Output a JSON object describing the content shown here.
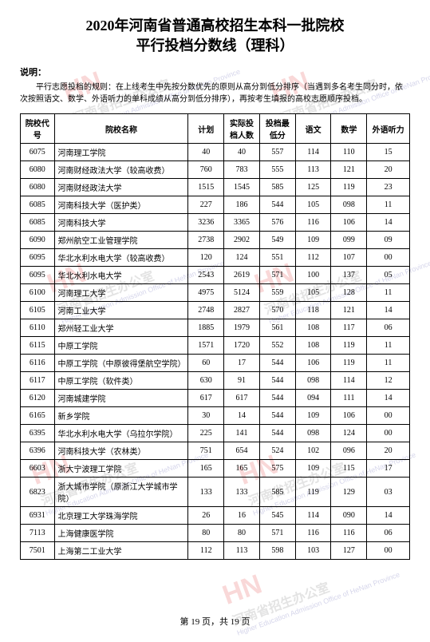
{
  "title_line1": "2020年河南省普通高校招生本科一批院校",
  "title_line2": "平行投档分数线（理科）",
  "note_label": "说明：",
  "note_body": "平行志愿投档的规则：在上线考生中先按分数优先的原则从高分到低分排序（当遇到多名考生同分时，依次按照语文、数学、外语听力的单科成绩从高分到低分排序），再按考生填报的高校志愿顺序投档。",
  "columns": {
    "code": "院校代号",
    "name": "院校名称",
    "plan": "计划",
    "actual": "实际投档人数",
    "score": "投档最低分",
    "chinese": "语文",
    "math": "数学",
    "listen": "外语听力"
  },
  "rows": [
    {
      "code": "6075",
      "name": "河南理工学院",
      "plan": "40",
      "actual": "40",
      "score": "557",
      "chinese": "114",
      "math": "110",
      "listen": "15"
    },
    {
      "code": "6080",
      "name": "河南财经政法大学（较高收费）",
      "plan": "760",
      "actual": "783",
      "score": "555",
      "chinese": "113",
      "math": "121",
      "listen": "20"
    },
    {
      "code": "6080",
      "name": "河南财经政法大学",
      "plan": "1515",
      "actual": "1545",
      "score": "585",
      "chinese": "125",
      "math": "119",
      "listen": "23"
    },
    {
      "code": "6085",
      "name": "河南科技大学（医护类）",
      "plan": "227",
      "actual": "186",
      "score": "544",
      "chinese": "105",
      "math": "098",
      "listen": "11"
    },
    {
      "code": "6085",
      "name": "河南科技大学",
      "plan": "3236",
      "actual": "3365",
      "score": "576",
      "chinese": "116",
      "math": "106",
      "listen": "14"
    },
    {
      "code": "6090",
      "name": "郑州航空工业管理学院",
      "plan": "2738",
      "actual": "2902",
      "score": "549",
      "chinese": "109",
      "math": "099",
      "listen": "09"
    },
    {
      "code": "6095",
      "name": "华北水利水电大学（较高收费）",
      "plan": "120",
      "actual": "124",
      "score": "551",
      "chinese": "112",
      "math": "107",
      "listen": "00"
    },
    {
      "code": "6095",
      "name": "华北水利水电大学",
      "plan": "2543",
      "actual": "2619",
      "score": "571",
      "chinese": "100",
      "math": "137",
      "listen": "05"
    },
    {
      "code": "6100",
      "name": "河南理工大学",
      "plan": "4975",
      "actual": "5124",
      "score": "559",
      "chinese": "105",
      "math": "128",
      "listen": "11"
    },
    {
      "code": "6105",
      "name": "河南工业大学",
      "plan": "2748",
      "actual": "2827",
      "score": "570",
      "chinese": "118",
      "math": "121",
      "listen": "14"
    },
    {
      "code": "6110",
      "name": "郑州轻工业大学",
      "plan": "1885",
      "actual": "1979",
      "score": "561",
      "chinese": "108",
      "math": "117",
      "listen": "06"
    },
    {
      "code": "6115",
      "name": "中原工学院",
      "plan": "1571",
      "actual": "1720",
      "score": "552",
      "chinese": "108",
      "math": "119",
      "listen": "11"
    },
    {
      "code": "6116",
      "name": "中原工学院（中原彼得堡航空学院）",
      "plan": "60",
      "actual": "17",
      "score": "544",
      "chinese": "106",
      "math": "119",
      "listen": "11"
    },
    {
      "code": "6117",
      "name": "中原工学院（软件类）",
      "plan": "630",
      "actual": "91",
      "score": "544",
      "chinese": "098",
      "math": "114",
      "listen": "12"
    },
    {
      "code": "6120",
      "name": "河南城建学院",
      "plan": "617",
      "actual": "617",
      "score": "544",
      "chinese": "094",
      "math": "111",
      "listen": "14"
    },
    {
      "code": "6165",
      "name": "新乡学院",
      "plan": "30",
      "actual": "14",
      "score": "544",
      "chinese": "109",
      "math": "106",
      "listen": "00"
    },
    {
      "code": "6395",
      "name": "华北水利水电大学（乌拉尔学院）",
      "plan": "225",
      "actual": "141",
      "score": "544",
      "chinese": "098",
      "math": "124",
      "listen": "00"
    },
    {
      "code": "6396",
      "name": "河南科技大学（农林类）",
      "plan": "751",
      "actual": "654",
      "score": "524",
      "chinese": "102",
      "math": "096",
      "listen": "20"
    },
    {
      "code": "6603",
      "name": "浙大宁波理工学院",
      "plan": "165",
      "actual": "165",
      "score": "575",
      "chinese": "109",
      "math": "115",
      "listen": "17"
    },
    {
      "code": "6823",
      "name": "浙大城市学院（原浙江大学城市学院）",
      "plan": "133",
      "actual": "133",
      "score": "585",
      "chinese": "119",
      "math": "129",
      "listen": "03"
    },
    {
      "code": "6931",
      "name": "北京理工大学珠海学院",
      "plan": "26",
      "actual": "16",
      "score": "545",
      "chinese": "114",
      "math": "090",
      "listen": "14"
    },
    {
      "code": "7113",
      "name": "上海健康医学院",
      "plan": "80",
      "actual": "80",
      "score": "571",
      "chinese": "116",
      "math": "116",
      "listen": "06"
    },
    {
      "code": "7501",
      "name": "上海第二工业大学",
      "plan": "112",
      "actual": "113",
      "score": "598",
      "chinese": "103",
      "math": "127",
      "listen": "00"
    }
  ],
  "pager": "第 19 页，共 19 页",
  "watermark_main": "HN",
  "watermark_cn": "河南省招生办公室",
  "watermark_sub": "Higher Education Admission Office of HeNan Province"
}
